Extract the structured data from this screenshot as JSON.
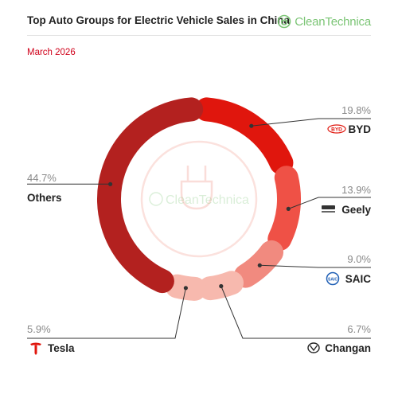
{
  "header": {
    "title": "Top Auto Groups for Electric Vehicle Sales in China",
    "subtitle": "March 2026",
    "brand": "CleanTechnica"
  },
  "watermark": {
    "text": "CleanTechnica"
  },
  "colors": {
    "BYD": "#e0160d",
    "Geely": "#ef5146",
    "SAIC": "#f18a7f",
    "Changan": "#f7b9ae",
    "Tesla": "#f7b9ae",
    "Others": "#b3211f",
    "brand": "#7cc576",
    "accent": "#d0021b"
  },
  "icons": {
    "BYD": "byd-logo-icon",
    "Geely": "geely-logo-icon",
    "SAIC": "saic-logo-icon",
    "Changan": "changan-logo-icon",
    "Tesla": "tesla-logo-icon"
  },
  "chart_data": {
    "type": "pie",
    "style": "donut",
    "categories": [
      "BYD",
      "Geely",
      "SAIC",
      "Changan",
      "Tesla",
      "Others"
    ],
    "values": [
      19.8,
      13.9,
      9.0,
      6.7,
      5.9,
      44.7
    ],
    "value_labels": [
      "19.8%",
      "13.9%",
      "9.0%",
      "6.7%",
      "5.9%",
      "44.7%"
    ],
    "title": "Top Auto Groups for Electric Vehicle Sales in China",
    "subtitle": "March 2026"
  }
}
